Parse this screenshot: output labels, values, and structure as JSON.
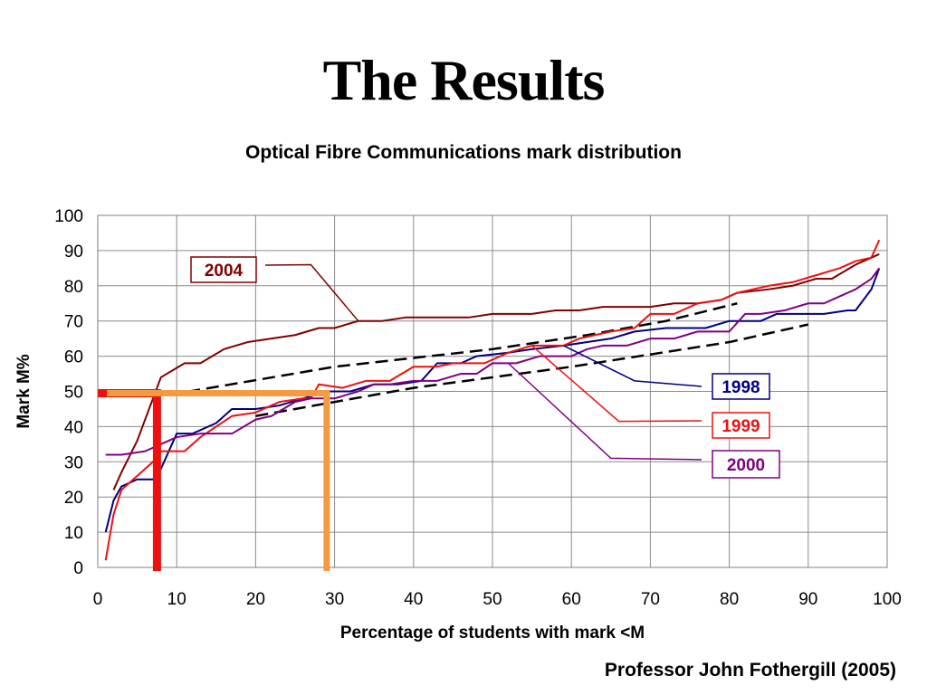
{
  "slide": {
    "title": "The Results",
    "footer": "Professor John Fothergill (2005)"
  },
  "chart_data": {
    "type": "line",
    "title": "Optical Fibre Communications mark distribution",
    "xlabel": "Percentage of students with mark <M",
    "ylabel": "Mark M%",
    "xlim": [
      0,
      100
    ],
    "ylim": [
      0,
      100
    ],
    "xticks": [
      0,
      10,
      20,
      30,
      40,
      50,
      60,
      70,
      80,
      90,
      100
    ],
    "yticks": [
      0,
      10,
      20,
      30,
      40,
      50,
      60,
      70,
      80,
      90,
      100
    ],
    "grid": true,
    "series": [
      {
        "name": "2004",
        "color": "#800000",
        "callout_anchor": [
          27,
          86
        ],
        "points": [
          [
            2,
            22
          ],
          [
            3,
            27
          ],
          [
            5,
            36
          ],
          [
            7,
            48
          ],
          [
            8,
            54
          ],
          [
            11,
            58
          ],
          [
            13,
            58
          ],
          [
            16,
            62
          ],
          [
            19,
            64
          ],
          [
            22,
            65
          ],
          [
            25,
            66
          ],
          [
            28,
            68
          ],
          [
            30,
            68
          ],
          [
            33,
            70
          ],
          [
            36,
            70
          ],
          [
            39,
            71
          ],
          [
            44,
            71
          ],
          [
            47,
            71
          ],
          [
            50,
            72
          ],
          [
            55,
            72
          ],
          [
            58,
            73
          ],
          [
            61,
            73
          ],
          [
            64,
            74
          ],
          [
            70,
            74
          ],
          [
            73,
            75
          ],
          [
            76,
            75
          ],
          [
            79,
            76
          ],
          [
            81,
            78
          ],
          [
            85,
            79
          ],
          [
            88,
            80
          ],
          [
            91,
            82
          ],
          [
            93,
            82
          ],
          [
            96,
            86
          ],
          [
            99,
            89
          ]
        ]
      },
      {
        "name": "1998",
        "color": "#000080",
        "callout_anchor": [
          68,
          53
        ],
        "points": [
          [
            1,
            10
          ],
          [
            2,
            19
          ],
          [
            3,
            23
          ],
          [
            5,
            25
          ],
          [
            7,
            25
          ],
          [
            8,
            28
          ],
          [
            10,
            38
          ],
          [
            12,
            38
          ],
          [
            15,
            41
          ],
          [
            17,
            45
          ],
          [
            20,
            45
          ],
          [
            23,
            46
          ],
          [
            26,
            48
          ],
          [
            29,
            50
          ],
          [
            32,
            50
          ],
          [
            35,
            52
          ],
          [
            38,
            52
          ],
          [
            41,
            53
          ],
          [
            43,
            58
          ],
          [
            46,
            58
          ],
          [
            48,
            60
          ],
          [
            52,
            61
          ],
          [
            55,
            62
          ],
          [
            59,
            63
          ],
          [
            62,
            64
          ],
          [
            65,
            65
          ],
          [
            68,
            67
          ],
          [
            72,
            68
          ],
          [
            77,
            68
          ],
          [
            80,
            70
          ],
          [
            84,
            70
          ],
          [
            86,
            72
          ],
          [
            92,
            72
          ],
          [
            95,
            73
          ],
          [
            96,
            73
          ],
          [
            98,
            79
          ],
          [
            99,
            85
          ]
        ]
      },
      {
        "name": "1999",
        "color": "#ee1010",
        "callout_anchor": [
          66,
          41.5
        ],
        "points": [
          [
            1,
            2
          ],
          [
            2,
            15
          ],
          [
            3,
            22
          ],
          [
            5,
            26
          ],
          [
            7,
            30
          ],
          [
            8,
            33
          ],
          [
            11,
            33
          ],
          [
            13,
            37
          ],
          [
            15,
            40
          ],
          [
            17,
            43
          ],
          [
            20,
            44
          ],
          [
            23,
            47
          ],
          [
            26,
            48
          ],
          [
            27,
            48
          ],
          [
            28,
            52
          ],
          [
            31,
            51
          ],
          [
            34,
            53
          ],
          [
            37,
            53
          ],
          [
            40,
            57
          ],
          [
            43,
            57
          ],
          [
            45,
            58
          ],
          [
            49,
            58
          ],
          [
            52,
            61
          ],
          [
            55,
            63
          ],
          [
            59,
            63
          ],
          [
            61,
            65
          ],
          [
            65,
            67
          ],
          [
            68,
            68
          ],
          [
            70,
            72
          ],
          [
            73,
            72
          ],
          [
            76,
            75
          ],
          [
            79,
            76
          ],
          [
            81,
            78
          ],
          [
            85,
            80
          ],
          [
            88,
            81
          ],
          [
            91,
            83
          ],
          [
            94,
            85
          ],
          [
            96,
            87
          ],
          [
            98,
            88
          ],
          [
            99,
            93
          ]
        ]
      },
      {
        "name": "2000",
        "color": "#800080",
        "callout_anchor": [
          65,
          31
        ],
        "points": [
          [
            1,
            32
          ],
          [
            3,
            32
          ],
          [
            6,
            33
          ],
          [
            8,
            35
          ],
          [
            10,
            37
          ],
          [
            13,
            38
          ],
          [
            17,
            38
          ],
          [
            20,
            42
          ],
          [
            22,
            43
          ],
          [
            25,
            47
          ],
          [
            27,
            48
          ],
          [
            30,
            48
          ],
          [
            33,
            50
          ],
          [
            35,
            52
          ],
          [
            37,
            52
          ],
          [
            40,
            53
          ],
          [
            43,
            53
          ],
          [
            46,
            55
          ],
          [
            48,
            55
          ],
          [
            50,
            58
          ],
          [
            53,
            58
          ],
          [
            56,
            60
          ],
          [
            60,
            60
          ],
          [
            62,
            62
          ],
          [
            64,
            63
          ],
          [
            67,
            63
          ],
          [
            70,
            65
          ],
          [
            73,
            65
          ],
          [
            76,
            67
          ],
          [
            80,
            67
          ],
          [
            82,
            72
          ],
          [
            84,
            72
          ],
          [
            87,
            73
          ],
          [
            90,
            75
          ],
          [
            92,
            75
          ],
          [
            94,
            77
          ],
          [
            96,
            79
          ],
          [
            98,
            82
          ],
          [
            99,
            85
          ]
        ]
      }
    ],
    "dashed_lines": [
      {
        "color": "#000000",
        "points": [
          [
            9,
            49
          ],
          [
            30,
            57
          ],
          [
            50,
            62
          ],
          [
            62,
            66
          ],
          [
            72,
            70
          ],
          [
            81,
            75
          ]
        ]
      },
      {
        "color": "#000000",
        "points": [
          [
            20,
            43
          ],
          [
            40,
            51
          ],
          [
            60,
            57
          ],
          [
            80,
            64
          ],
          [
            90,
            69
          ]
        ]
      }
    ],
    "highlights": [
      {
        "color": "#ee1010",
        "y": 49.5,
        "x": 7.5
      },
      {
        "color": "#f59a40",
        "y": 49.5,
        "x": 29
      }
    ]
  }
}
